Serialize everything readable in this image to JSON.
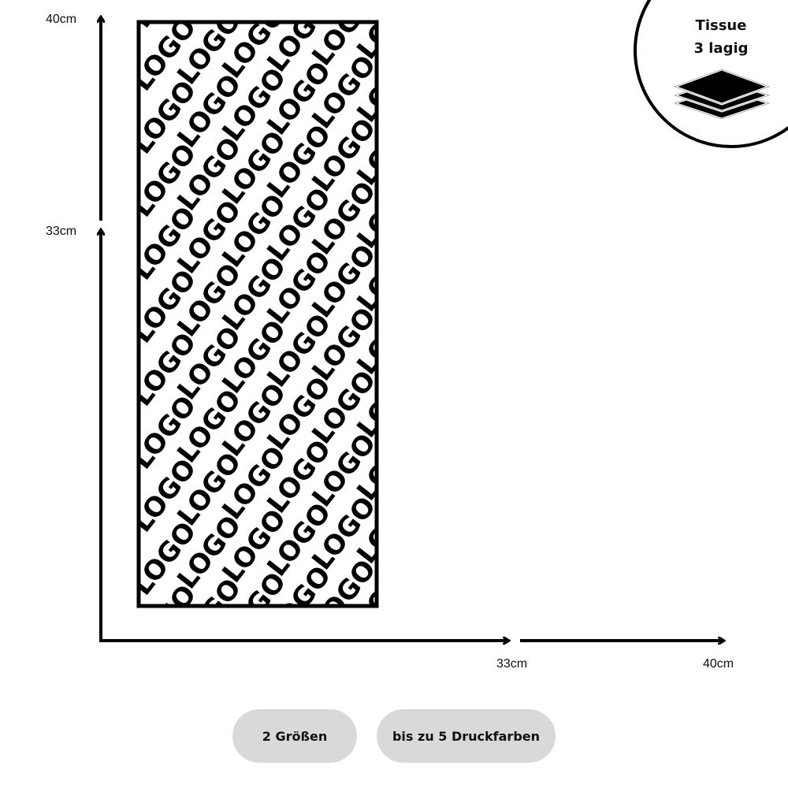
{
  "dimensions": {
    "height_max": "40cm",
    "height_min": "33cm",
    "width_min": "33cm",
    "width_max": "40cm"
  },
  "pattern": {
    "text": "LOGO"
  },
  "badge": {
    "line1": "Tissue",
    "line2": "3 lagig",
    "icon": "layers-icon"
  },
  "pills": [
    {
      "label": "2 Größen"
    },
    {
      "label": "bis zu 5 Druckfarben"
    }
  ],
  "colors": {
    "stroke": "#000000",
    "pill_bg": "#d9d9d9"
  }
}
